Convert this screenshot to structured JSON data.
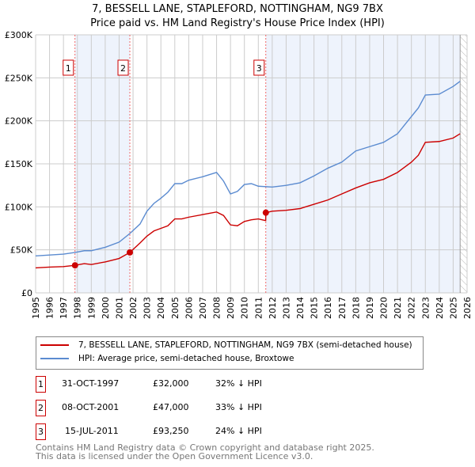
{
  "title": "7, BESSELL LANE, STAPLEFORD, NOTTINGHAM, NG9 7BX",
  "subtitle": "Price paid vs. HM Land Registry's House Price Index (HPI)",
  "chart_data": {
    "type": "line",
    "xlim": [
      1995,
      2026
    ],
    "ylim": [
      0,
      300000
    ],
    "yticks": [
      0,
      50000,
      100000,
      150000,
      200000,
      250000,
      300000
    ],
    "ytick_labels": [
      "£0",
      "£50K",
      "£100K",
      "£150K",
      "£200K",
      "£250K",
      "£300K"
    ],
    "xticks": [
      1995,
      1996,
      1997,
      1998,
      1999,
      2000,
      2001,
      2002,
      2003,
      2004,
      2005,
      2006,
      2007,
      2008,
      2009,
      2010,
      2011,
      2012,
      2013,
      2014,
      2015,
      2016,
      2017,
      2018,
      2019,
      2020,
      2021,
      2022,
      2023,
      2024,
      2025,
      2026
    ],
    "shaded_periods": [
      [
        1997.83,
        2001.77
      ],
      [
        2011.54,
        2025.5
      ]
    ],
    "forecast_hatch_from": 2025.5,
    "series": [
      {
        "name": "7, BESSELL LANE, STAPLEFORD, NOTTINGHAM, NG9 7BX (semi-detached house)",
        "color": "#cc0000",
        "x": [
          1995,
          1996,
          1997,
          1997.83,
          1998.5,
          1999,
          2000,
          2001,
          2001.77,
          2002.5,
          2003,
          2003.5,
          2004,
          2004.5,
          2005,
          2005.5,
          2006,
          2007,
          2008,
          2008.5,
          2009,
          2009.5,
          2010,
          2010.5,
          2011,
          2011.53,
          2011.54,
          2012,
          2013,
          2014,
          2015,
          2016,
          2017,
          2018,
          2019,
          2020,
          2021,
          2022,
          2022.5,
          2023,
          2024,
          2025,
          2025.5
        ],
        "y": [
          29000,
          30000,
          30500,
          32000,
          34000,
          33000,
          36000,
          40000,
          47000,
          58000,
          66000,
          72000,
          75000,
          78000,
          86000,
          86000,
          88000,
          91000,
          94000,
          90000,
          79000,
          78000,
          83000,
          85000,
          86000,
          84000,
          93250,
          95000,
          96000,
          98000,
          103000,
          108000,
          115000,
          122000,
          128000,
          132000,
          140000,
          152000,
          160000,
          175000,
          176000,
          180000,
          185000
        ]
      },
      {
        "name": "HPI: Average price, semi-detached house, Broxtowe",
        "color": "#5b8bd0",
        "x": [
          1995,
          1996,
          1997,
          1997.83,
          1998.5,
          1999,
          2000,
          2001,
          2001.77,
          2002.5,
          2003,
          2003.5,
          2004,
          2004.5,
          2005,
          2005.5,
          2006,
          2007,
          2008,
          2008.5,
          2009,
          2009.5,
          2010,
          2010.5,
          2011,
          2012,
          2013,
          2014,
          2015,
          2016,
          2017,
          2018,
          2019,
          2020,
          2021,
          2022,
          2022.5,
          2023,
          2024,
          2025,
          2025.5
        ],
        "y": [
          43000,
          44000,
          45000,
          47000,
          49000,
          49000,
          53000,
          59000,
          69000,
          80000,
          95000,
          104000,
          110000,
          117000,
          127000,
          127000,
          131000,
          135000,
          140000,
          130000,
          115000,
          118000,
          126000,
          127000,
          124000,
          123000,
          125000,
          128000,
          136000,
          145000,
          152000,
          165000,
          170000,
          175000,
          185000,
          205000,
          215000,
          230000,
          231000,
          240000,
          246000
        ]
      }
    ],
    "sales": [
      {
        "label": "1",
        "x": 1997.83,
        "y": 32000
      },
      {
        "label": "2",
        "x": 2001.77,
        "y": 47000
      },
      {
        "label": "3",
        "x": 2011.54,
        "y": 93250
      }
    ]
  },
  "legend": [
    "7, BESSELL LANE, STAPLEFORD, NOTTINGHAM, NG9 7BX (semi-detached house)",
    "HPI: Average price, semi-detached house, Broxtowe"
  ],
  "transactions": [
    {
      "num": "1",
      "date": "31-OCT-1997",
      "price": "£32,000",
      "hpi": "32% ↓ HPI"
    },
    {
      "num": "2",
      "date": "08-OCT-2001",
      "price": "£47,000",
      "hpi": "33% ↓ HPI"
    },
    {
      "num": "3",
      "date": "15-JUL-2011",
      "price": "£93,250",
      "hpi": "24% ↓ HPI"
    }
  ],
  "footer": [
    "Contains HM Land Registry data © Crown copyright and database right 2025.",
    "This data is licensed under the Open Government Licence v3.0."
  ]
}
